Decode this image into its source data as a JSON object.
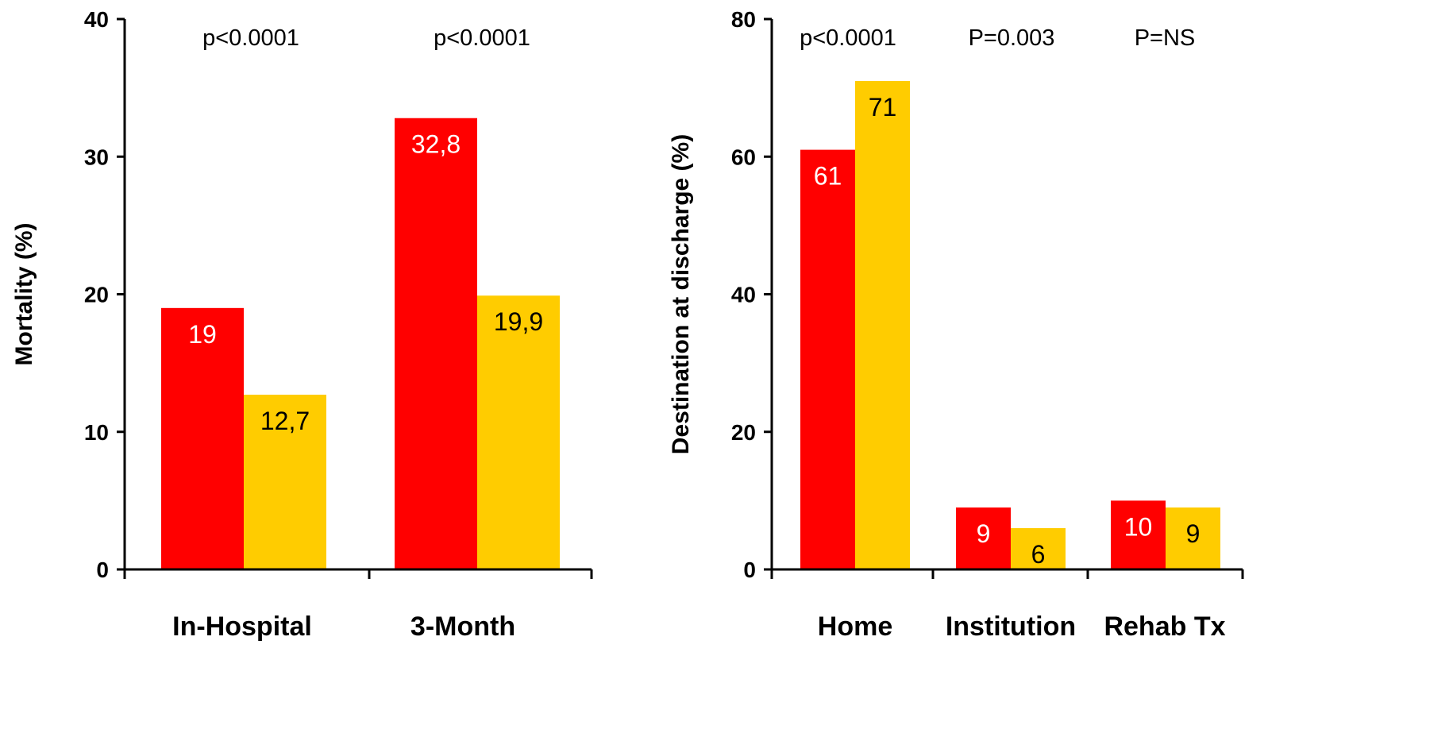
{
  "chart_data": [
    {
      "type": "bar",
      "ylabel": "Mortality (%)",
      "ylim": [
        0,
        40
      ],
      "yticks": [
        0,
        10,
        20,
        30,
        40
      ],
      "categories": [
        "In-Hospital",
        "3-Month"
      ],
      "series": [
        {
          "color": "#FF0000",
          "label_color": "#FFFFFF",
          "values": [
            19,
            32.8
          ],
          "labels": [
            "19",
            "32,8"
          ]
        },
        {
          "color": "#FFCC00",
          "label_color": "#000000",
          "values": [
            12.7,
            19.9
          ],
          "labels": [
            "12,7",
            "19,9"
          ]
        }
      ],
      "annotations": [
        "p<0.0001",
        "p<0.0001"
      ],
      "grid": false,
      "legend": "none"
    },
    {
      "type": "bar",
      "ylabel": "Destination at discharge (%)",
      "ylim": [
        0,
        80
      ],
      "yticks": [
        0,
        20,
        40,
        60,
        80
      ],
      "categories": [
        "Home",
        "Institution",
        "Rehab Tx"
      ],
      "series": [
        {
          "color": "#FF0000",
          "label_color": "#FFFFFF",
          "values": [
            61,
            9,
            10
          ],
          "labels": [
            "61",
            "9",
            "10"
          ]
        },
        {
          "color": "#FFCC00",
          "label_color": "#000000",
          "values": [
            71,
            6,
            9
          ],
          "labels": [
            "71",
            "6",
            "9"
          ]
        }
      ],
      "annotations": [
        "p<0.0001",
        "P=0.003",
        "P=NS"
      ],
      "grid": false,
      "legend": "none"
    }
  ]
}
